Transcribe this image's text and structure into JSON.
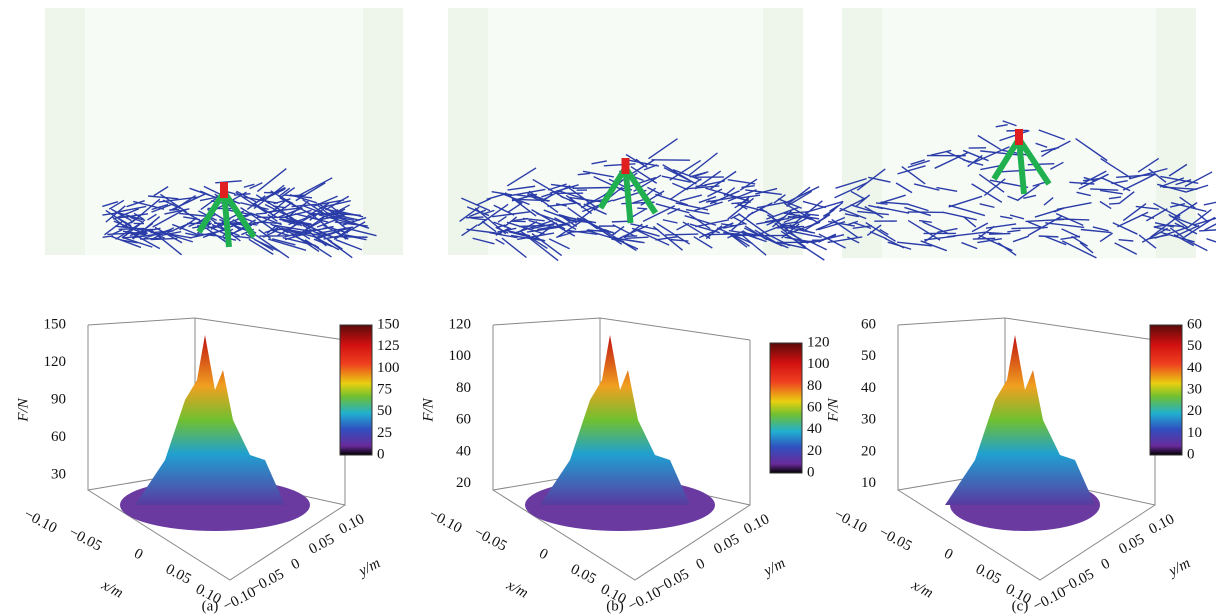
{
  "panels": [
    {
      "label": "(a)",
      "z_axis": "F/N",
      "z_ticks": [
        "150",
        "120",
        "90",
        "60",
        "30"
      ],
      "colorbar_ticks": [
        "150",
        "125",
        "100",
        "75",
        "50",
        "25",
        "0"
      ],
      "x_axis": "x/m",
      "x_ticks": [
        "−0.10",
        "−0.05",
        "0",
        "0.05",
        "0.10"
      ],
      "y_axis": "y/m",
      "y_ticks": [
        "0.10",
        "0.05",
        "0",
        "−0.05",
        "−0.10"
      ]
    },
    {
      "label": "(b)",
      "z_axis": "F/N",
      "z_ticks": [
        "120",
        "100",
        "80",
        "60",
        "40",
        "20"
      ],
      "colorbar_ticks": [
        "120",
        "100",
        "80",
        "60",
        "40",
        "20",
        "0"
      ],
      "x_axis": "x/m",
      "x_ticks": [
        "−0.10",
        "−0.05",
        "0",
        "0.05",
        "0.10"
      ],
      "y_axis": "y/m",
      "y_ticks": [
        "0.10",
        "0.05",
        "0",
        "−0.05",
        "−0.10"
      ]
    },
    {
      "label": "(c)",
      "z_axis": "F/N",
      "z_ticks": [
        "60",
        "50",
        "40",
        "30",
        "20",
        "10"
      ],
      "colorbar_ticks": [
        "60",
        "50",
        "40",
        "30",
        "20",
        "10",
        "0"
      ],
      "x_axis": "x/m",
      "x_ticks": [
        "−0.10",
        "−0.05",
        "0",
        "0.05",
        "0.10"
      ],
      "y_axis": "y/m",
      "y_ticks": [
        "0.10",
        "0.05",
        "0",
        "−0.05",
        "−0.10"
      ]
    }
  ]
}
